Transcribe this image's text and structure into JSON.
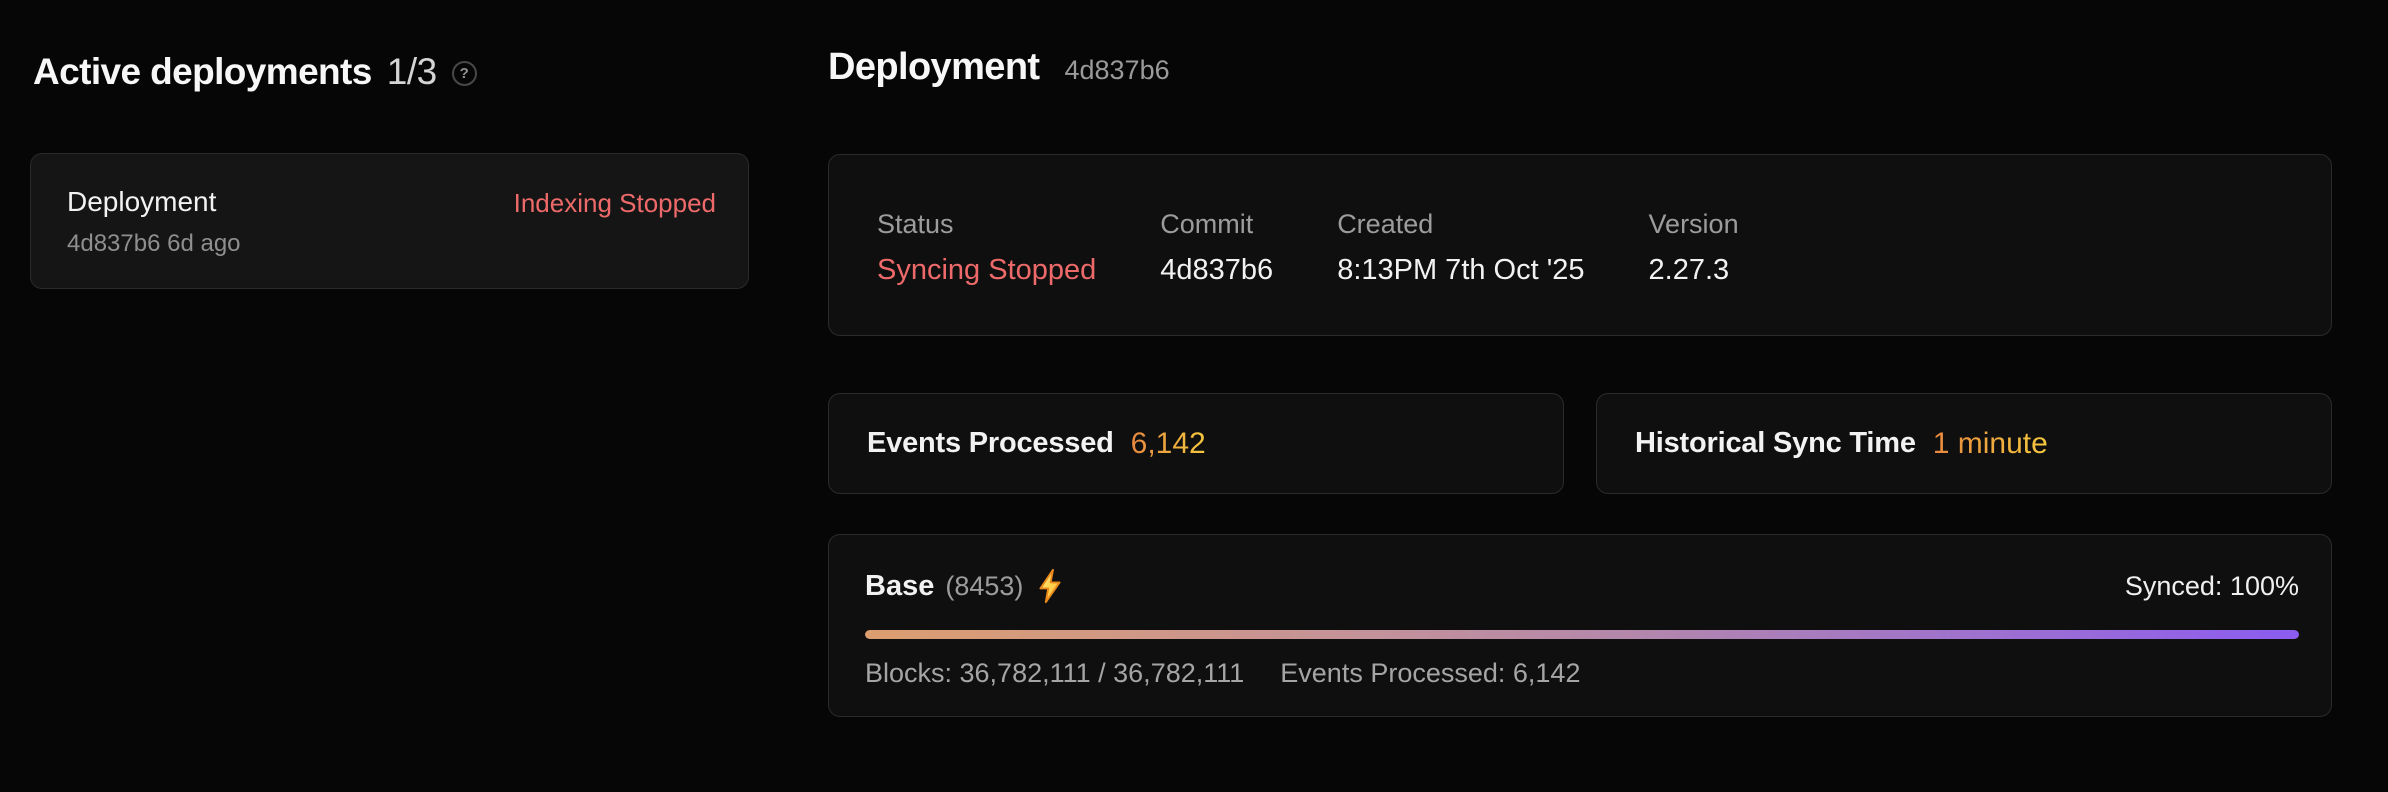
{
  "left_panel": {
    "title": "Active deployments",
    "count": "1/3",
    "help_icon": "?",
    "deployment_card": {
      "name": "Deployment",
      "status": "Indexing Stopped",
      "meta": "4d837b6 6d ago"
    }
  },
  "main_panel": {
    "title": "Deployment",
    "commit_hash": "4d837b6",
    "overview": [
      {
        "label": "Status",
        "value": "Syncing Stopped"
      },
      {
        "label": "Commit",
        "value": "4d837b6"
      },
      {
        "label": "Created",
        "value": "8:13PM 7th Oct '25"
      },
      {
        "label": "Version",
        "value": "2.27.3"
      }
    ],
    "metrics": [
      {
        "label": "Events Processed",
        "value": "6,142"
      },
      {
        "label": "Historical Sync Time",
        "value": "1 minute"
      }
    ],
    "chain_card": {
      "name": "Base",
      "chain_id": "(8453)",
      "bolt_icon": "lightning-bolt",
      "synced_label": "Synced: 100%",
      "progress_percent": 100,
      "blocks": "Blocks: 36,782,111 / 36,782,111",
      "events": "Events Processed: 6,142"
    }
  },
  "colors": {
    "status_error": "#ee6a6a",
    "amber_gradient_start": "#e8883f",
    "amber_gradient_end": "#f5c93e",
    "bar_gradient_start": "#dd9e6f",
    "bar_gradient_mid": "#b286ad",
    "bar_gradient_end": "#8b5cf0",
    "card_background": "#0f0f0f",
    "card_border": "#2b2b2b"
  }
}
